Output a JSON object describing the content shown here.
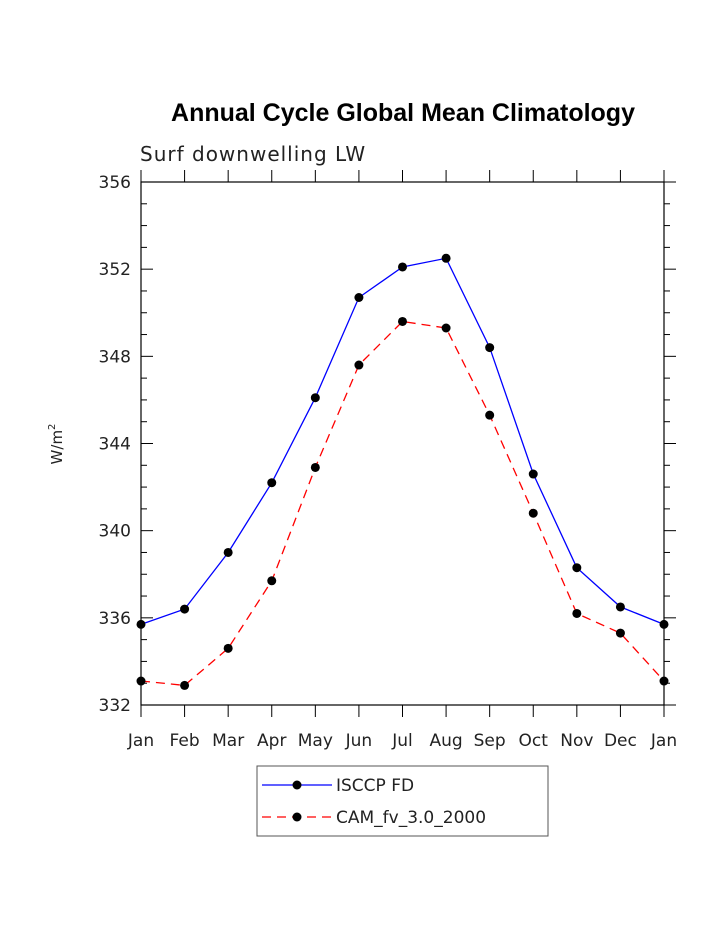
{
  "chart_data": {
    "type": "line",
    "title": "Annual Cycle Global Mean Climatology",
    "subtitle": "Surf downwelling LW",
    "xlabel": "",
    "ylabel": "W/m",
    "ylabel_superscript": "2",
    "categories": [
      "Jan",
      "Feb",
      "Mar",
      "Apr",
      "May",
      "Jun",
      "Jul",
      "Aug",
      "Sep",
      "Oct",
      "Nov",
      "Dec",
      "Jan"
    ],
    "ylim": [
      332,
      356
    ],
    "yticks": [
      332,
      336,
      340,
      344,
      348,
      352,
      356
    ],
    "grid": false,
    "legend_position": "bottom",
    "series": [
      {
        "name": "ISCCP FD",
        "color": "#0000ff",
        "dash": "solid",
        "marker": "circle",
        "values": [
          335.7,
          336.4,
          339.0,
          342.2,
          346.1,
          350.7,
          352.1,
          352.5,
          348.4,
          342.6,
          338.3,
          336.5,
          335.7
        ]
      },
      {
        "name": "CAM_fv_3.0_2000",
        "color": "#ff0000",
        "dash": "dashed",
        "marker": "circle",
        "values": [
          333.1,
          332.9,
          334.6,
          337.7,
          342.9,
          347.6,
          349.6,
          349.3,
          345.3,
          340.8,
          336.2,
          335.3,
          333.1
        ]
      }
    ]
  }
}
